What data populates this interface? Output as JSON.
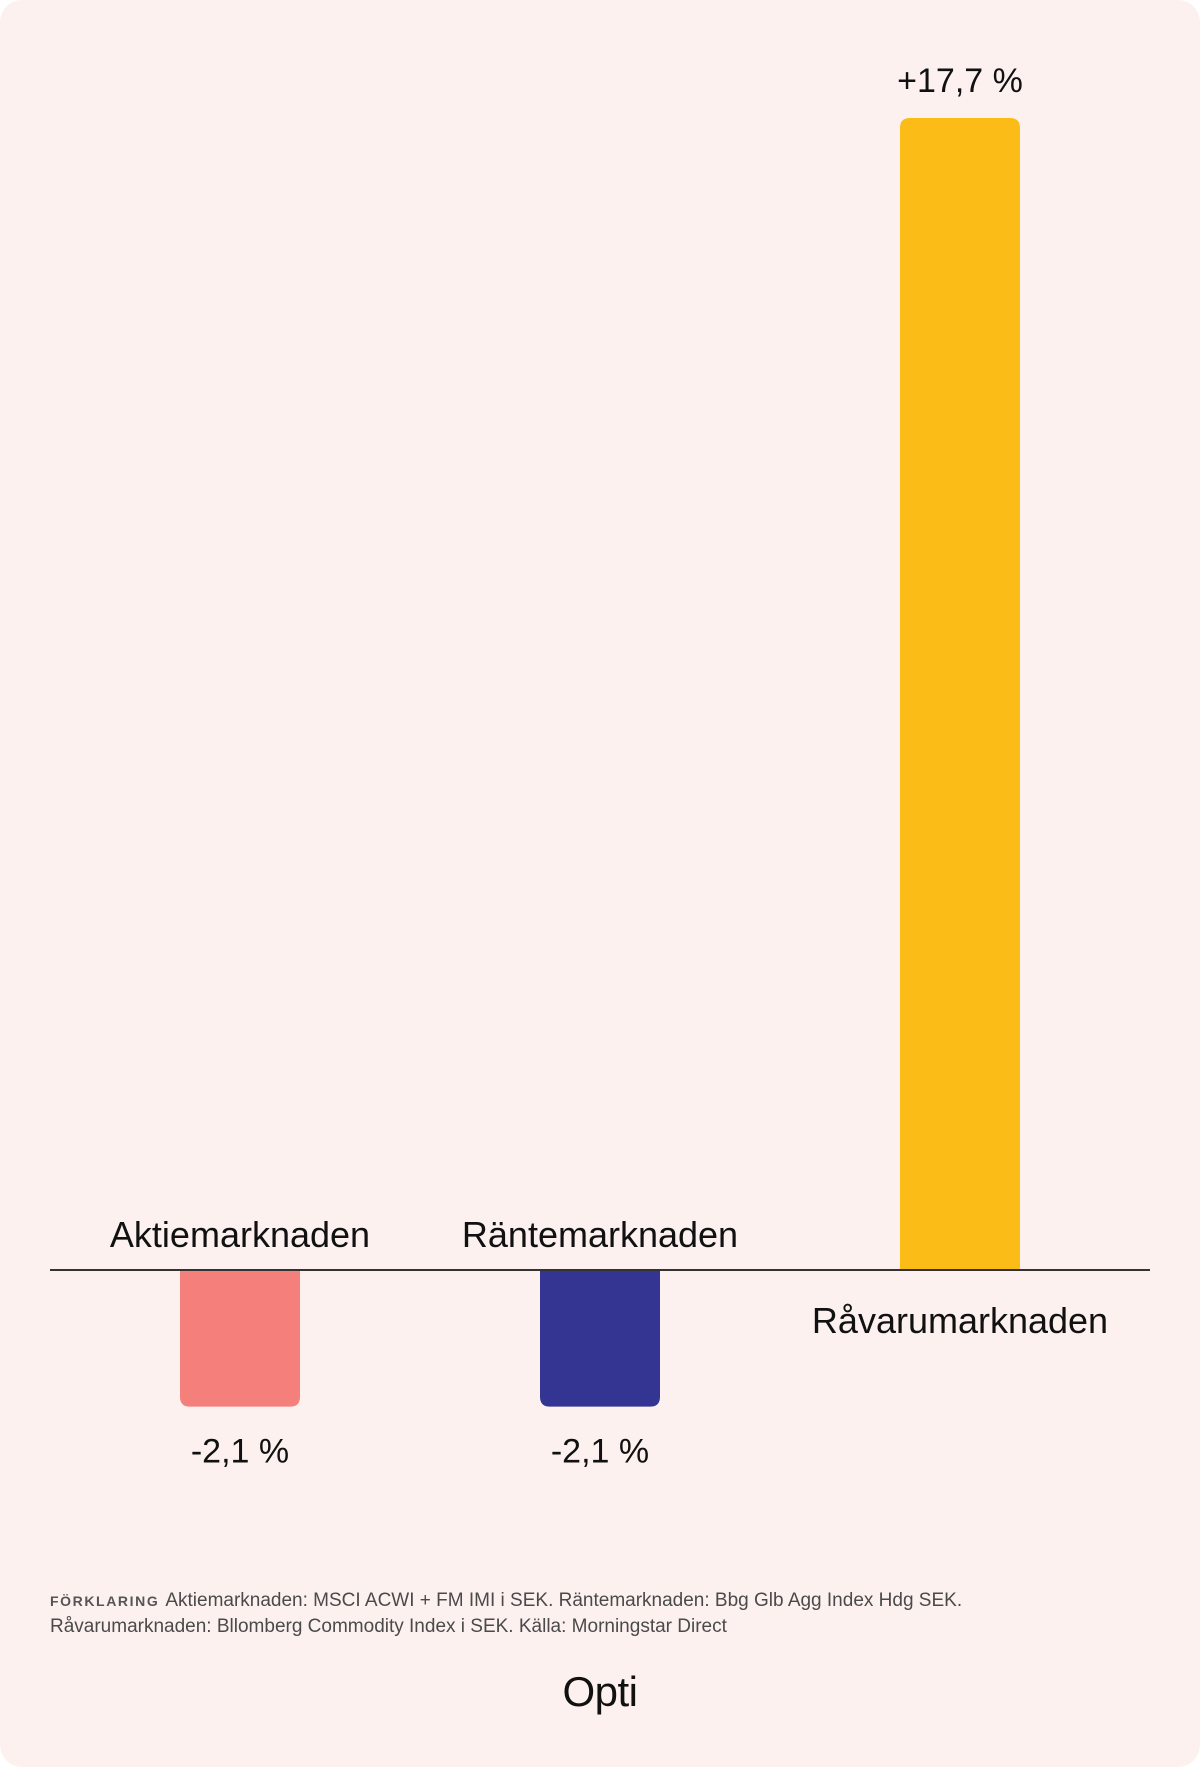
{
  "chart_data": {
    "type": "bar",
    "categories": [
      "Aktiemarknaden",
      "Räntemarknaden",
      "Råvarumarknaden"
    ],
    "values": [
      -2.1,
      -2.1,
      17.7
    ],
    "value_labels": [
      "-2,1 %",
      "-2,1 %",
      "+17,7 %"
    ],
    "colors": [
      "#f47f7b",
      "#343593",
      "#fbbc17"
    ],
    "title": "",
    "xlabel": "",
    "ylabel": "",
    "ylim": [
      -2.1,
      17.7
    ],
    "grid": false,
    "baseline_color": "#333333"
  },
  "footnote": {
    "kicker": "FÖRKLARING",
    "line1": "Aktiemarknaden: MSCI ACWI + FM IMI i SEK. Räntemarknaden: Bbg Glb Agg Index Hdg SEK.",
    "line2": "Råvarumarknaden: Bllomberg Commodity Index i SEK. Källa: Morningstar Direct"
  },
  "brand": "Opti"
}
